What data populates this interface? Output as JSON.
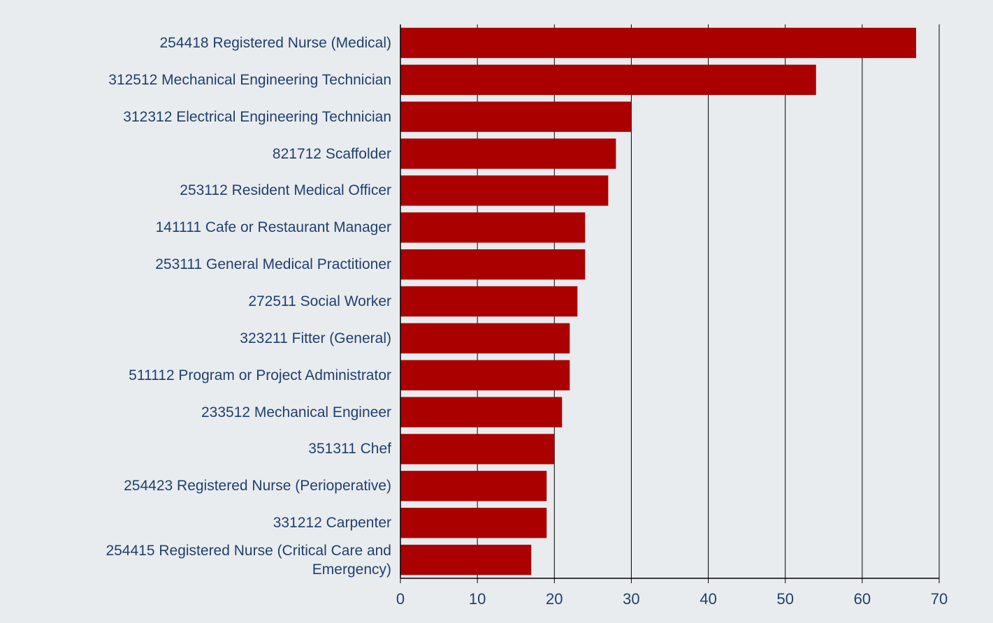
{
  "chart_data": {
    "type": "bar",
    "orientation": "horizontal",
    "categories": [
      "254418 Registered Nurse (Medical)",
      "312512 Mechanical Engineering Technician",
      "312312 Electrical Engineering Technician",
      "821712 Scaffolder",
      "253112 Resident Medical Officer",
      "141111 Cafe or Restaurant Manager",
      "253111 General Medical Practitioner",
      "272511 Social Worker",
      "323211 Fitter (General)",
      "511112 Program or Project Administrator",
      "233512 Mechanical Engineer",
      "351311 Chef",
      "254423 Registered Nurse (Perioperative)",
      "331212 Carpenter",
      "254415 Registered Nurse (Critical Care and Emergency)"
    ],
    "values": [
      67,
      54,
      30,
      28,
      27,
      24,
      24,
      23,
      22,
      22,
      21,
      20,
      19,
      19,
      17
    ],
    "color": "#ab0000",
    "xlim": [
      0,
      70
    ],
    "xticks": [
      0,
      10,
      20,
      30,
      40,
      50,
      60,
      70
    ],
    "grid": true
  }
}
